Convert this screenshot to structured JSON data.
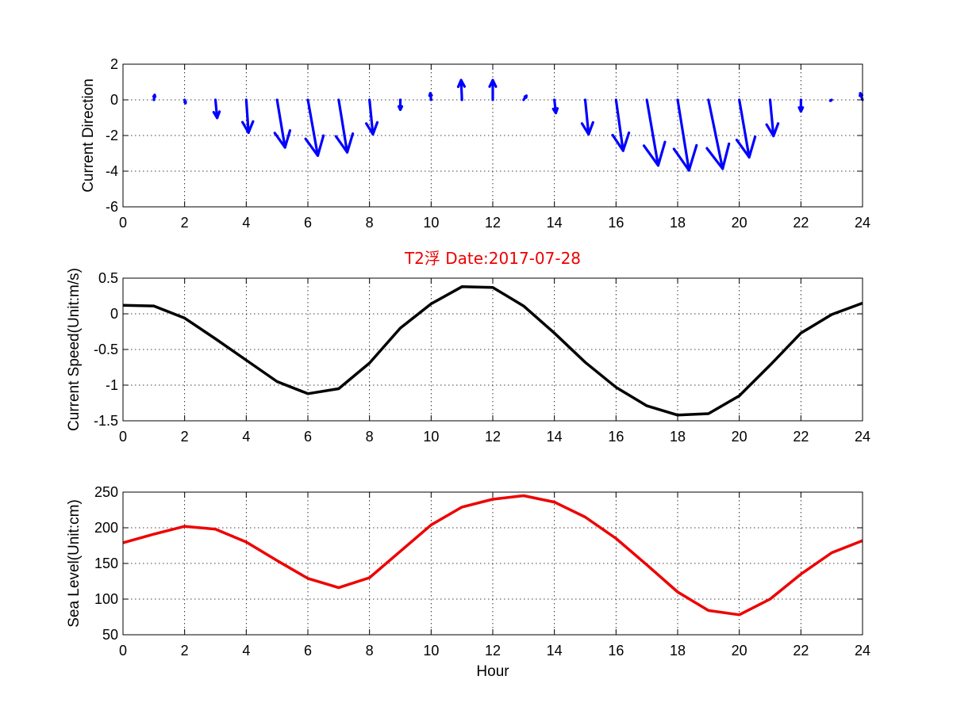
{
  "chart_data": [
    {
      "type": "quiver",
      "title": "",
      "xlabel": "",
      "ylabel": "Current Direction",
      "xlim": [
        0,
        24
      ],
      "ylim": [
        -6,
        2
      ],
      "xticks": [
        0,
        2,
        4,
        6,
        8,
        10,
        12,
        14,
        16,
        18,
        20,
        22,
        24
      ],
      "yticks": [
        -6,
        -4,
        -2,
        0,
        2
      ],
      "grid": true,
      "color": "#0000ff",
      "x": [
        1,
        2,
        3,
        4,
        5,
        6,
        7,
        8,
        9,
        10,
        11,
        12,
        13,
        14,
        15,
        16,
        17,
        18,
        19,
        20,
        21,
        22,
        23,
        24
      ],
      "u": [
        0.03,
        0.03,
        0.06,
        0.08,
        0.28,
        0.35,
        0.3,
        0.12,
        0.0,
        -0.03,
        -0.03,
        0.0,
        0.1,
        0.05,
        0.12,
        0.25,
        0.4,
        0.4,
        0.5,
        0.35,
        0.12,
        0.0,
        -0.05,
        -0.08
      ],
      "v": [
        0.3,
        -0.2,
        -1.1,
        -2.0,
        -2.9,
        -3.4,
        -3.2,
        -2.1,
        -0.6,
        0.4,
        1.2,
        1.2,
        0.25,
        -0.8,
        -2.1,
        -3.1,
        -4.0,
        -4.3,
        -4.2,
        -3.5,
        -2.2,
        -0.7,
        -0.05,
        0.4
      ]
    },
    {
      "type": "line",
      "title": "T2浮    Date:2017-07-28",
      "xlabel": "",
      "ylabel": "Current Speed(Unit:m/s)",
      "xlim": [
        0,
        24
      ],
      "ylim": [
        -1.5,
        0.5
      ],
      "xticks": [
        0,
        2,
        4,
        6,
        8,
        10,
        12,
        14,
        16,
        18,
        20,
        22,
        24
      ],
      "yticks": [
        -1.5,
        -1,
        -0.5,
        0,
        0.5
      ],
      "ytick_labels": [
        "-1.5",
        "-1",
        "-0.5",
        "0",
        "0.5"
      ],
      "grid": true,
      "color": "#000000",
      "x": [
        0,
        1,
        2,
        3,
        4,
        5,
        6,
        7,
        8,
        9,
        10,
        11,
        12,
        13,
        14,
        15,
        16,
        17,
        18,
        19,
        20,
        21,
        22,
        23,
        24
      ],
      "y": [
        0.12,
        0.11,
        -0.06,
        -0.35,
        -0.65,
        -0.95,
        -1.12,
        -1.05,
        -0.69,
        -0.2,
        0.14,
        0.38,
        0.37,
        0.11,
        -0.27,
        -0.68,
        -1.03,
        -1.29,
        -1.42,
        -1.4,
        -1.15,
        -0.72,
        -0.27,
        -0.01,
        0.15
      ]
    },
    {
      "type": "line",
      "title": "",
      "xlabel": "Hour",
      "ylabel": "Sea Level(Unit:cm)",
      "xlim": [
        0,
        24
      ],
      "ylim": [
        50,
        250
      ],
      "xticks": [
        0,
        2,
        4,
        6,
        8,
        10,
        12,
        14,
        16,
        18,
        20,
        22,
        24
      ],
      "yticks": [
        50,
        100,
        150,
        200,
        250
      ],
      "grid": true,
      "color": "#ee0000",
      "x": [
        0,
        1,
        2,
        3,
        4,
        5,
        6,
        7,
        8,
        9,
        10,
        11,
        12,
        13,
        14,
        15,
        16,
        17,
        18,
        19,
        20,
        21,
        22,
        23,
        24
      ],
      "y": [
        179,
        191,
        202,
        198,
        180,
        154,
        129,
        116,
        130,
        167,
        204,
        229,
        240,
        245,
        236,
        215,
        185,
        148,
        110,
        84,
        78,
        100,
        135,
        165,
        182
      ]
    }
  ]
}
